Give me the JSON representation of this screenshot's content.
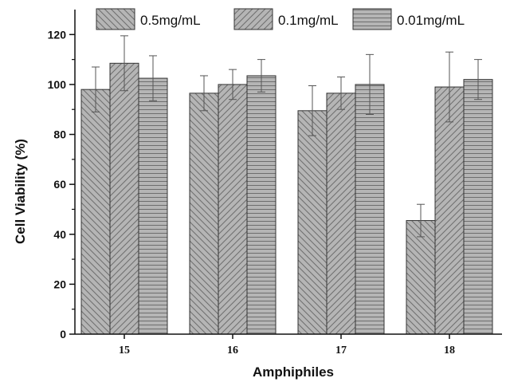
{
  "chart_data": {
    "type": "bar",
    "xlabel": "Amphiphiles",
    "ylabel": "Cell Viability (%)",
    "ylim": [
      0,
      130
    ],
    "yticks": [
      0,
      20,
      40,
      60,
      80,
      100,
      120
    ],
    "categories": [
      "15",
      "16",
      "17",
      "18"
    ],
    "legend_position": "top",
    "series": [
      {
        "name": "0.5mg/mL",
        "pattern": "diagonal-down",
        "values": [
          98,
          96.5,
          89.5,
          45.5
        ],
        "errors": [
          9,
          7,
          10,
          6.5
        ]
      },
      {
        "name": "0.1mg/mL",
        "pattern": "diagonal-up",
        "values": [
          108.5,
          100,
          96.5,
          99
        ],
        "errors": [
          11,
          6,
          6.5,
          14
        ]
      },
      {
        "name": "0.01mg/mL",
        "pattern": "horizontal",
        "values": [
          102.5,
          103.5,
          100,
          102
        ],
        "errors": [
          9,
          6.5,
          12,
          8
        ]
      }
    ],
    "colors": {
      "bar_fill": "#b5b5b5",
      "hatch": "#6e6e6e",
      "axis": "#111111"
    }
  }
}
